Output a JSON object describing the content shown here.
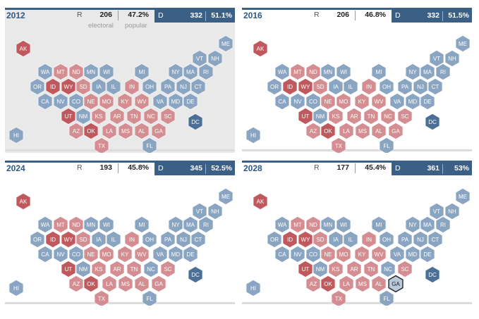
{
  "colors": {
    "r_strong": "#c0595e",
    "r_light": "#d48d91",
    "d_strong": "#4b6f96",
    "d_light": "#8aa5c1",
    "highlight_fill": "#b8c9dc",
    "highlight_stroke": "#1a1a1a"
  },
  "labels": {
    "electoral": "electoral",
    "popular": "popular"
  },
  "panels": [
    {
      "year": "2012",
      "r": {
        "letter": "R",
        "electoral": "206",
        "popular": "47.2%"
      },
      "d": {
        "letter": "D",
        "electoral": "332",
        "popular": "51.1%"
      },
      "states": {
        "AK": "R",
        "HI": "D",
        "ME": "D",
        "VT": "D",
        "NH": "D",
        "WA": "D",
        "MT": "R",
        "ND": "R",
        "MN": "D",
        "WI": "D",
        "MI": "D",
        "NY": "D",
        "MA": "D",
        "RI": "D",
        "OR": "D",
        "ID": "R",
        "WY": "R",
        "SD": "R",
        "IA": "D",
        "IL": "D",
        "IN": "R",
        "OH": "D",
        "PA": "D",
        "NJ": "D",
        "CT": "D",
        "CA": "D",
        "NV": "D",
        "CO": "D",
        "NE": "R",
        "MO": "R",
        "KY": "R",
        "WV": "R",
        "VA": "D",
        "MD": "D",
        "DE": "D",
        "UT": "R",
        "NM": "D",
        "KS": "R",
        "AR": "R",
        "TN": "R",
        "NC": "R",
        "SC": "R",
        "DC": "D",
        "AZ": "R",
        "OK": "R",
        "LA": "R",
        "MS": "R",
        "AL": "R",
        "GA": "R",
        "TX": "R",
        "FL": "D"
      }
    },
    {
      "year": "2016",
      "r": {
        "letter": "R",
        "electoral": "206",
        "popular": "46.8%"
      },
      "d": {
        "letter": "D",
        "electoral": "332",
        "popular": "51.5%"
      },
      "states": {
        "AK": "R",
        "HI": "D",
        "ME": "D",
        "VT": "D",
        "NH": "D",
        "WA": "D",
        "MT": "R",
        "ND": "R",
        "MN": "D",
        "WI": "D",
        "MI": "D",
        "NY": "D",
        "MA": "D",
        "RI": "D",
        "OR": "D",
        "ID": "R",
        "WY": "R",
        "SD": "R",
        "IA": "D",
        "IL": "D",
        "IN": "R",
        "OH": "D",
        "PA": "D",
        "NJ": "D",
        "CT": "D",
        "CA": "D",
        "NV": "D",
        "CO": "D",
        "NE": "R",
        "MO": "R",
        "KY": "R",
        "WV": "R",
        "VA": "D",
        "MD": "D",
        "DE": "D",
        "UT": "R",
        "NM": "D",
        "KS": "R",
        "AR": "R",
        "TN": "R",
        "NC": "R",
        "SC": "R",
        "DC": "D",
        "AZ": "R",
        "OK": "R",
        "LA": "R",
        "MS": "R",
        "AL": "R",
        "GA": "R",
        "TX": "R",
        "FL": "D"
      }
    },
    {
      "year": "2024",
      "r": {
        "letter": "R",
        "electoral": "193",
        "popular": "45.8%"
      },
      "d": {
        "letter": "D",
        "electoral": "345",
        "popular": "52.5%"
      },
      "states": {
        "AK": "R",
        "HI": "D",
        "ME": "D",
        "VT": "D",
        "NH": "D",
        "WA": "D",
        "MT": "R",
        "ND": "R",
        "MN": "D",
        "WI": "D",
        "MI": "D",
        "NY": "D",
        "MA": "D",
        "RI": "D",
        "OR": "D",
        "ID": "R",
        "WY": "R",
        "SD": "R",
        "IA": "D",
        "IL": "D",
        "IN": "R",
        "OH": "D",
        "PA": "D",
        "NJ": "D",
        "CT": "D",
        "CA": "D",
        "NV": "D",
        "CO": "D",
        "NE": "R",
        "MO": "R",
        "KY": "R",
        "WV": "R",
        "VA": "D",
        "MD": "D",
        "DE": "D",
        "UT": "R",
        "NM": "D",
        "KS": "R",
        "AR": "R",
        "TN": "R",
        "NC": "D",
        "SC": "R",
        "DC": "D",
        "AZ": "R",
        "OK": "R",
        "LA": "R",
        "MS": "R",
        "AL": "R",
        "GA": "R",
        "TX": "R",
        "FL": "D"
      }
    },
    {
      "year": "2028",
      "r": {
        "letter": "R",
        "electoral": "177",
        "popular": "45.4%"
      },
      "d": {
        "letter": "D",
        "electoral": "361",
        "popular": "53%"
      },
      "states": {
        "AK": "R",
        "HI": "D",
        "ME": "D",
        "VT": "D",
        "NH": "D",
        "WA": "D",
        "MT": "R",
        "ND": "R",
        "MN": "D",
        "WI": "D",
        "MI": "D",
        "NY": "D",
        "MA": "D",
        "RI": "D",
        "OR": "D",
        "ID": "R",
        "WY": "R",
        "SD": "R",
        "IA": "D",
        "IL": "D",
        "IN": "R",
        "OH": "D",
        "PA": "D",
        "NJ": "D",
        "CT": "D",
        "CA": "D",
        "NV": "D",
        "CO": "D",
        "NE": "R",
        "MO": "R",
        "KY": "R",
        "WV": "R",
        "VA": "D",
        "MD": "D",
        "DE": "D",
        "UT": "R",
        "NM": "D",
        "KS": "R",
        "AR": "R",
        "TN": "R",
        "NC": "D",
        "SC": "R",
        "DC": "D",
        "AZ": "R",
        "OK": "R",
        "LA": "R",
        "MS": "R",
        "AL": "R",
        "GA": "D",
        "TX": "R",
        "FL": "D"
      },
      "highlight": "GA"
    }
  ]
}
